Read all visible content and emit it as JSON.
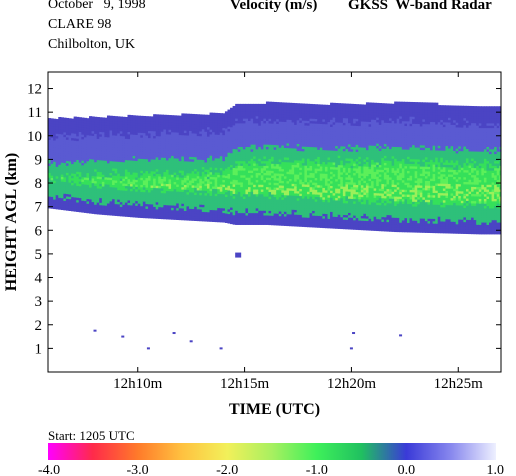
{
  "header": {
    "date": "October   9, 1998",
    "campaign": "CLARE 98",
    "location": "Chilbolton, UK",
    "quantity": "Velocity (m/s)",
    "instrument": "GKSS  W-band Radar"
  },
  "footer": {
    "start": "Start: 1205 UTC"
  },
  "colors": {
    "deep_blue": "#4b44c4",
    "light_blue": "#5a5ad2",
    "teal": "#2ec07a",
    "green": "#35e05a",
    "bright_green": "#5cf05a",
    "yellow_green": "#9cf05a",
    "frame": "#000000"
  },
  "chart_data": {
    "type": "heatmap",
    "title": "Velocity (m/s)",
    "xlabel": "TIME (UTC)",
    "ylabel": "HEIGHT AGL (km)",
    "x_ticks": [
      "12h10m",
      "12h15m",
      "12h20m",
      "12h25m"
    ],
    "x_tick_minutes": [
      10,
      15,
      20,
      25
    ],
    "xlim_minutes": [
      5.8,
      27.0
    ],
    "y_ticks": [
      "1",
      "2",
      "3",
      "4",
      "5",
      "6",
      "7",
      "8",
      "9",
      "10",
      "11",
      "12"
    ],
    "y_tick_values": [
      1,
      2,
      3,
      4,
      5,
      6,
      7,
      8,
      9,
      10,
      11,
      12
    ],
    "ylim_km": [
      0.0,
      12.7
    ],
    "cloud_layer": {
      "time_minutes": [
        5.8,
        8.0,
        10.0,
        12.0,
        14.0,
        14.5,
        16.0,
        18.0,
        20.0,
        22.0,
        24.0,
        26.0,
        27.0
      ],
      "top_km": [
        10.7,
        10.75,
        10.8,
        10.85,
        10.9,
        11.3,
        11.35,
        11.3,
        11.3,
        11.35,
        11.3,
        11.2,
        11.2
      ],
      "base_km": [
        6.95,
        6.7,
        6.55,
        6.45,
        6.35,
        6.25,
        6.25,
        6.15,
        6.05,
        5.95,
        5.9,
        5.85,
        5.85
      ]
    },
    "isolated_echoes": [
      {
        "time_minutes": 14.7,
        "height_km": 4.95
      },
      {
        "time_minutes": 8.0,
        "height_km": 1.75
      },
      {
        "time_minutes": 9.3,
        "height_km": 1.5
      },
      {
        "time_minutes": 10.5,
        "height_km": 1.0
      },
      {
        "time_minutes": 11.7,
        "height_km": 1.65
      },
      {
        "time_minutes": 12.5,
        "height_km": 1.3
      },
      {
        "time_minutes": 13.9,
        "height_km": 1.0
      },
      {
        "time_minutes": 20.1,
        "height_km": 1.65
      },
      {
        "time_minutes": 20.0,
        "height_km": 1.0
      },
      {
        "time_minutes": 22.3,
        "height_km": 1.55
      }
    ],
    "colorbar": {
      "ticks": [
        "-4.0",
        "-3.0",
        "-2.0",
        "-1.0",
        "0.0",
        "1.0"
      ],
      "tick_values": [
        -4.0,
        -3.0,
        -2.0,
        -1.0,
        0.0,
        1.0
      ],
      "range": [
        -4.0,
        1.0
      ],
      "stops": [
        "#ff00ff",
        "#ff2a4a",
        "#ff7a2a",
        "#ffc240",
        "#f2f05a",
        "#a8f060",
        "#3ef05a",
        "#20c060",
        "#3a3ad8",
        "#8888ee",
        "#eef0ff"
      ]
    }
  }
}
